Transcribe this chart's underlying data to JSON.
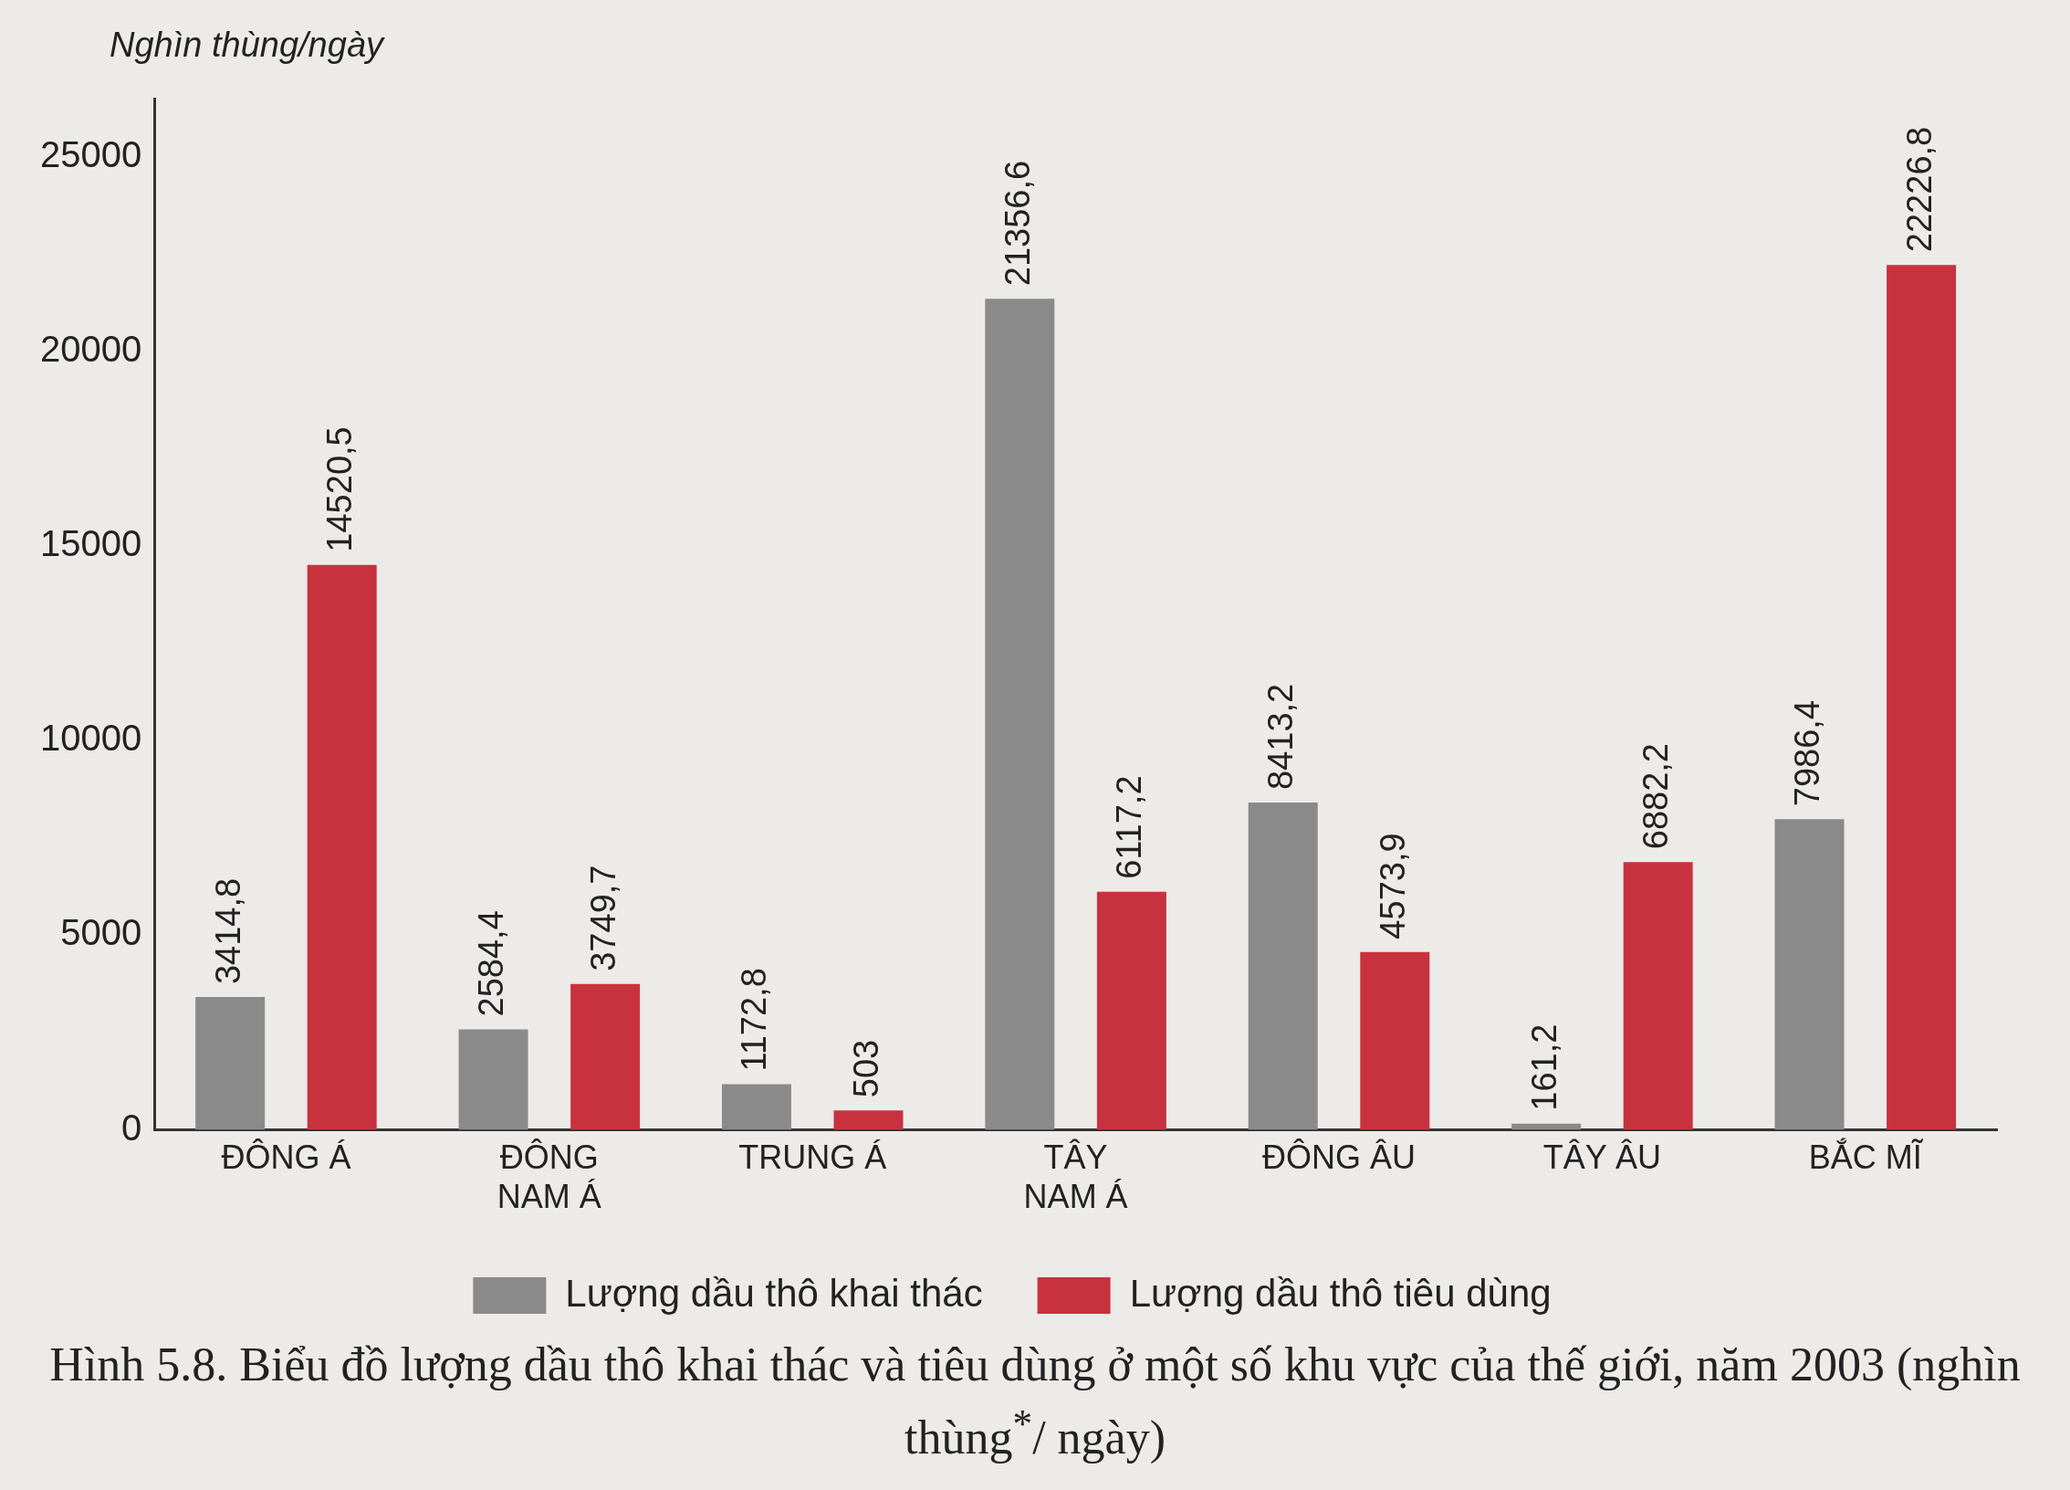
{
  "chart_data": {
    "type": "bar",
    "title": "Hình 5.8. Biểu đồ lượng dầu thô khai thác và tiêu dùng ở một số khu vực của thế giới, năm 2003 (nghìn thùng$^{*}$/ ngày)",
    "ylabel": "Nghìn thùng/ngày",
    "categories": [
      "ĐÔNG Á",
      "ĐÔNG NAM Á",
      "TRUNG Á",
      "TÂY NAM Á",
      "ĐÔNG ÂU",
      "TÂY ÂU",
      "BẮC MĨ"
    ],
    "series": [
      {
        "name": "Lượng dầu thô khai thác",
        "color": "#8a8a8a",
        "values": [
          3414.8,
          2584.4,
          1172.8,
          21356.6,
          8413.2,
          161.2,
          7986.4
        ],
        "value_labels": [
          "3414,8",
          "2584,4",
          "1172,8",
          "21356,6",
          "8413,2",
          "161,2",
          "7986,4"
        ]
      },
      {
        "name": "Lượng dầu thô tiêu dùng",
        "color": "#c8323f",
        "values": [
          14520.5,
          3749.7,
          503,
          6117.2,
          4573.9,
          6882.2,
          22226.8
        ],
        "value_labels": [
          "14520,5",
          "3749,7",
          "503",
          "6117,2",
          "4573,9",
          "6882,2",
          "22226,8"
        ]
      }
    ],
    "ylim": [
      0,
      26500
    ],
    "yticks": [
      0,
      5000,
      10000,
      15000,
      20000,
      25000
    ],
    "legend": "bottom"
  }
}
